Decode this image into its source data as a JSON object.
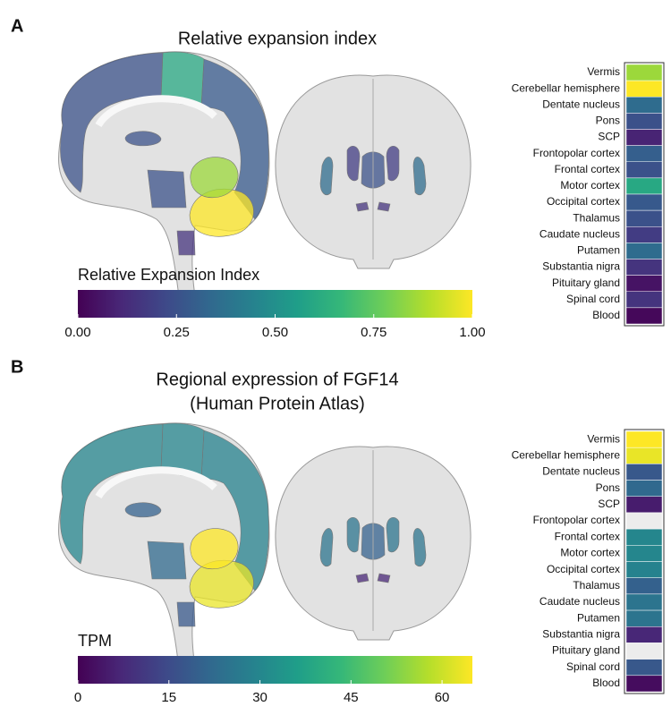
{
  "chart_data": [
    {
      "type": "heatmap",
      "panel_label": "A",
      "title": [
        "Relative expansion index"
      ],
      "categories": [
        "Vermis",
        "Cerebellar hemisphere",
        "Dentate nucleus",
        "Pons",
        "SCP",
        "Frontopolar cortex",
        "Frontal cortex",
        "Motor cortex",
        "Occipital cortex",
        "Thalamus",
        "Caudate nucleus",
        "Putamen",
        "Substantia nigra",
        "Pituitary gland",
        "Spinal cord",
        "Blood"
      ],
      "values": [
        0.85,
        1.0,
        0.35,
        0.25,
        0.1,
        0.3,
        0.25,
        0.6,
        0.28,
        0.25,
        0.18,
        0.35,
        0.15,
        0.05,
        0.15,
        0.02
      ],
      "colormap": "viridis",
      "missing_color": "#ececec",
      "colorbar_label": "Relative Expansion Index",
      "xlim": [
        0,
        1
      ],
      "xticks": [
        {
          "value": 0,
          "label": "0.00"
        },
        0.25,
        {
          "value": 0.5,
          "label": "0.50"
        },
        0.75,
        {
          "value": 1,
          "label": "1.00"
        }
      ]
    },
    {
      "type": "heatmap",
      "panel_label": "B",
      "title": [
        "Regional expression of FGF14",
        "(Human Protein Atlas)"
      ],
      "categories": [
        "Vermis",
        "Cerebellar hemisphere",
        "Dentate nucleus",
        "Pons",
        "SCP",
        "Frontopolar cortex",
        "Frontal cortex",
        "Motor cortex",
        "Occipital cortex",
        "Thalamus",
        "Caudate nucleus",
        "Putamen",
        "Substantia nigra",
        "Pituitary gland",
        "Spinal cord",
        "Blood"
      ],
      "values": [
        65,
        63,
        18,
        22,
        5,
        null,
        30,
        30,
        29,
        20,
        25,
        25,
        7,
        null,
        18,
        2
      ],
      "colormap": "viridis",
      "missing_color": "#ececec",
      "colorbar_label": "TPM",
      "xlim": [
        0,
        65
      ],
      "xticks": [
        0,
        15,
        30,
        45,
        60
      ]
    }
  ]
}
